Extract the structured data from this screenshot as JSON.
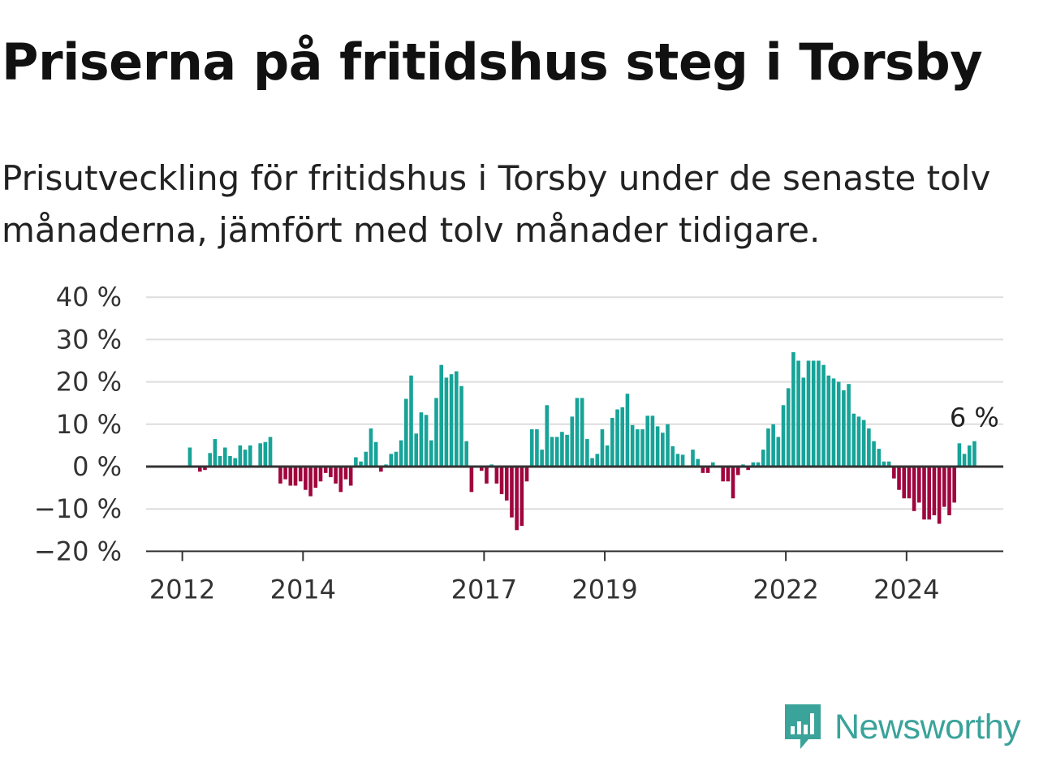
{
  "title": "Priserna på fritidshus steg i Torsby",
  "subtitle": "Prisutveckling för fritidshus i Torsby under de senaste tolv månaderna, jämfört med tolv månader tidigare.",
  "brand": "Newsworthy",
  "colors": {
    "positive": "#17a398",
    "negative": "#a0053e",
    "grid": "#dddddd",
    "axis": "#333333",
    "brand": "#3aa39a"
  },
  "chart_data": {
    "type": "bar",
    "title": "Priserna på fritidshus steg i Torsby",
    "subtitle": "Prisutveckling för fritidshus i Torsby under de senaste tolv månaderna, jämfört med tolv månader tidigare.",
    "xlabel": "",
    "ylabel": "",
    "ylim": [
      -20,
      40
    ],
    "yticks": [
      -20,
      -10,
      0,
      10,
      20,
      30,
      40
    ],
    "ytick_labels": [
      "−20 %",
      "−10 %",
      "0 %",
      "10 %",
      "20 %",
      "30 %",
      "40 %"
    ],
    "xticks": [
      "2012",
      "2014",
      "2017",
      "2019",
      "2022",
      "2024"
    ],
    "grid": true,
    "annotation": {
      "text": "6 %",
      "value": 6
    },
    "start_month": "2012-01",
    "values": [
      0,
      4.5,
      0,
      -1.2,
      -0.8,
      3.2,
      6.5,
      2.5,
      4.5,
      2.5,
      2.0,
      5.0,
      4.0,
      5.0,
      0,
      5.5,
      5.8,
      7.0,
      0,
      -4.0,
      -3.0,
      -4.5,
      -4.5,
      -3.5,
      -5.5,
      -7.0,
      -5.0,
      -3.5,
      -1.5,
      -2.5,
      -4.0,
      -6.0,
      -3.0,
      -4.5,
      2.2,
      1.2,
      3.5,
      9.0,
      5.8,
      -1.2,
      0.5,
      3.0,
      3.5,
      6.2,
      16.0,
      21.5,
      7.8,
      12.8,
      12.2,
      6.2,
      16.2,
      24.0,
      21.0,
      21.8,
      22.5,
      19.0,
      6.0,
      -6.0,
      0,
      -1.0,
      -4.0,
      0.5,
      -4.0,
      -6.5,
      -8.0,
      -12.0,
      -15.0,
      -14.0,
      -3.5,
      8.8,
      8.8,
      4.0,
      14.5,
      7.0,
      7.0,
      8.2,
      7.5,
      11.8,
      16.2,
      16.2,
      6.5,
      2.0,
      3.0,
      8.8,
      5.0,
      11.5,
      13.5,
      14.0,
      17.2,
      9.8,
      8.8,
      8.8,
      12.0,
      12.0,
      9.5,
      8.0,
      10.0,
      4.8,
      3.0,
      2.8,
      0,
      4.0,
      1.8,
      -1.5,
      -1.5,
      1.0,
      0,
      -3.5,
      -3.5,
      -7.5,
      -2.0,
      0.5,
      -0.8,
      1.0,
      1.0,
      4.0,
      9.0,
      10.0,
      7.0,
      14.5,
      18.5,
      27.0,
      25.0,
      21.0,
      25.0,
      25.0,
      25.0,
      24.0,
      21.5,
      20.8,
      20.0,
      18.0,
      19.5,
      12.5,
      11.8,
      11.0,
      9.0,
      6.0,
      4.2,
      1.2,
      1.2,
      -2.8,
      -5.5,
      -7.5,
      -7.5,
      -10.5,
      -8.5,
      -12.5,
      -12.5,
      -11.5,
      -13.5,
      -9.5,
      -11.5,
      -8.5,
      5.5,
      3.0,
      5.0,
      6.0
    ]
  }
}
